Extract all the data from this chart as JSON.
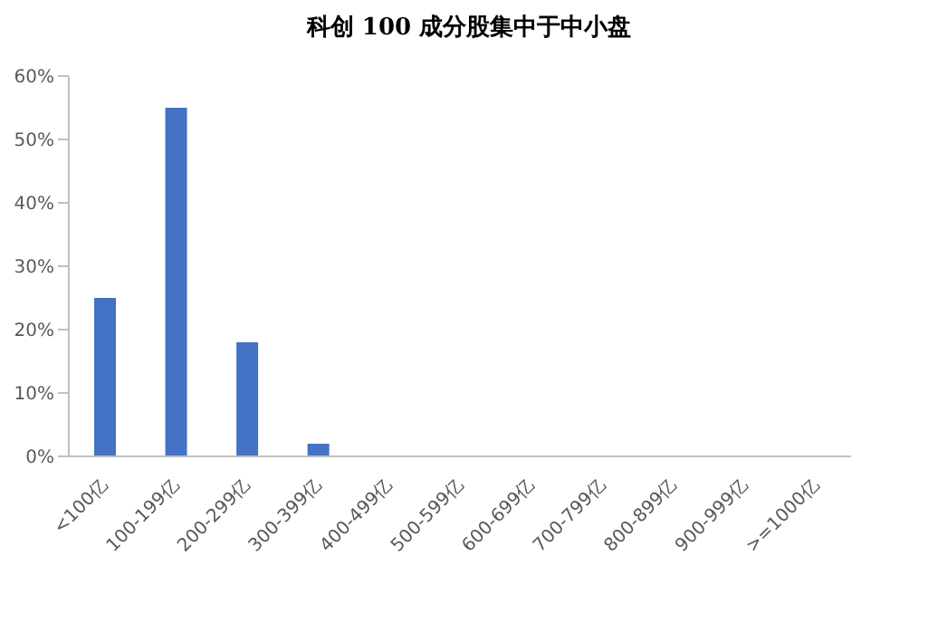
{
  "chart_data": {
    "type": "bar",
    "title": "科创 100 成分股集中于中小盘",
    "categories": [
      "<100亿",
      "100-199亿",
      "200-299亿",
      "300-399亿",
      "400-499亿",
      "500-599亿",
      "600-699亿",
      "700-799亿",
      "800-899亿",
      "900-999亿",
      ">=1000亿"
    ],
    "values": [
      25,
      55,
      18,
      2,
      0,
      0,
      0,
      0,
      0,
      0,
      0
    ],
    "color": "#4472c4",
    "ylim": [
      0,
      60
    ],
    "yticks": [
      {
        "value": 0,
        "label": "0%"
      },
      {
        "value": 10,
        "label": "10%"
      },
      {
        "value": 20,
        "label": "20%"
      },
      {
        "value": 30,
        "label": "30%"
      },
      {
        "value": 40,
        "label": "40%"
      },
      {
        "value": 50,
        "label": "50%"
      },
      {
        "value": 60,
        "label": "60%"
      }
    ],
    "grid": false,
    "legend": false
  }
}
